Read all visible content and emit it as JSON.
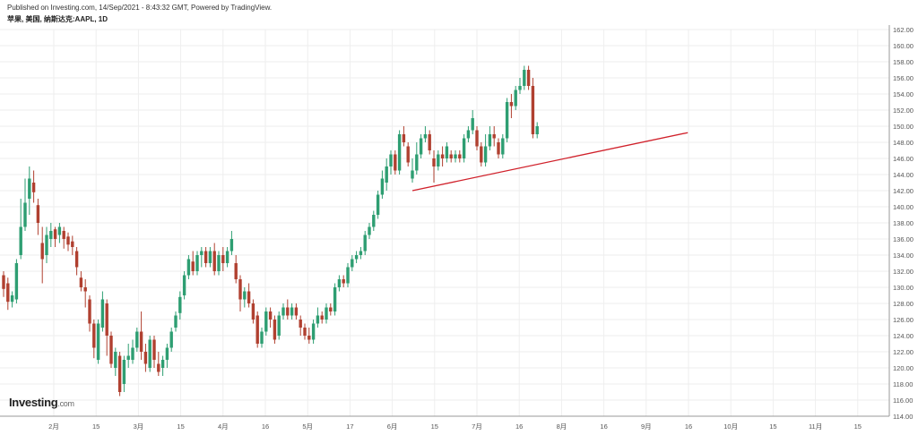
{
  "header": {
    "published": "Published on Investing.com, 14/Sep/2021 - 8:43:32 GMT, Powered by TradingView.",
    "symbol": "苹果, 美国, 纳斯达克:AAPL, 1D"
  },
  "logo": {
    "brand": "Investing",
    "domain": ".com"
  },
  "colors": {
    "up": "#2e9e72",
    "down": "#b04030",
    "trendline": "#d0202a",
    "grid": "#eeeeee"
  },
  "chart_data": {
    "type": "candlestick",
    "ylim": [
      114,
      162
    ],
    "y_ticks": [
      "162.00",
      "160.00",
      "158.00",
      "156.00",
      "154.00",
      "152.00",
      "150.00",
      "148.00",
      "146.00",
      "144.00",
      "142.00",
      "140.00",
      "138.00",
      "136.00",
      "134.00",
      "132.00",
      "130.00",
      "128.00",
      "126.00",
      "124.00",
      "122.00",
      "120.00",
      "118.00",
      "116.00",
      "114.00"
    ],
    "x_ticks": [
      "2月",
      "15",
      "3月",
      "15",
      "4月",
      "16",
      "5月",
      "17",
      "6月",
      "15",
      "7月",
      "16",
      "8月",
      "16",
      "9月",
      "16",
      "10月",
      "15",
      "11月",
      "15"
    ],
    "candles": [
      {
        "o": 131.5,
        "c": 129.8,
        "h": 132.0,
        "l": 128.8
      },
      {
        "o": 130.5,
        "c": 128.2,
        "h": 131.2,
        "l": 127.2
      },
      {
        "o": 128.2,
        "c": 129.0,
        "h": 129.5,
        "l": 127.5
      },
      {
        "o": 128.5,
        "c": 133.0,
        "h": 133.5,
        "l": 128.0
      },
      {
        "o": 134.0,
        "c": 137.5,
        "h": 141.0,
        "l": 133.5
      },
      {
        "o": 137.5,
        "c": 140.5,
        "h": 143.5,
        "l": 137.0
      },
      {
        "o": 141.0,
        "c": 143.5,
        "h": 145.0,
        "l": 139.0
      },
      {
        "o": 143.0,
        "c": 141.8,
        "h": 144.5,
        "l": 140.5
      },
      {
        "o": 140.2,
        "c": 138.0,
        "h": 141.0,
        "l": 136.5
      },
      {
        "o": 135.5,
        "c": 133.5,
        "h": 137.5,
        "l": 130.5
      },
      {
        "o": 134.0,
        "c": 136.5,
        "h": 137.5,
        "l": 133.0
      },
      {
        "o": 136.0,
        "c": 137.0,
        "h": 138.0,
        "l": 135.0
      },
      {
        "o": 137.2,
        "c": 136.0,
        "h": 137.5,
        "l": 135.0
      },
      {
        "o": 136.5,
        "c": 137.5,
        "h": 138.0,
        "l": 135.5
      },
      {
        "o": 137.0,
        "c": 136.0,
        "h": 137.5,
        "l": 134.8
      },
      {
        "o": 136.3,
        "c": 135.3,
        "h": 136.8,
        "l": 134.5
      },
      {
        "o": 135.7,
        "c": 135.0,
        "h": 136.4,
        "l": 134.0
      },
      {
        "o": 134.5,
        "c": 132.5,
        "h": 135.0,
        "l": 131.5
      },
      {
        "o": 131.2,
        "c": 130.0,
        "h": 132.0,
        "l": 129.5
      },
      {
        "o": 130.0,
        "c": 129.5,
        "h": 131.0,
        "l": 127.5
      },
      {
        "o": 128.5,
        "c": 125.5,
        "h": 129.0,
        "l": 124.5
      },
      {
        "o": 125.5,
        "c": 122.5,
        "h": 126.0,
        "l": 121.2
      },
      {
        "o": 121.0,
        "c": 125.5,
        "h": 126.0,
        "l": 120.5
      },
      {
        "o": 125.0,
        "c": 128.5,
        "h": 129.5,
        "l": 124.5
      },
      {
        "o": 128.0,
        "c": 124.0,
        "h": 128.5,
        "l": 121.5
      },
      {
        "o": 124.0,
        "c": 120.5,
        "h": 124.5,
        "l": 120.0
      },
      {
        "o": 120.0,
        "c": 122.0,
        "h": 122.5,
        "l": 119.0
      },
      {
        "o": 121.5,
        "c": 117.0,
        "h": 122.0,
        "l": 116.5
      },
      {
        "o": 118.0,
        "c": 121.0,
        "h": 121.5,
        "l": 117.0
      },
      {
        "o": 121.0,
        "c": 121.5,
        "h": 123.0,
        "l": 120.0
      },
      {
        "o": 121.0,
        "c": 122.5,
        "h": 123.5,
        "l": 120.5
      },
      {
        "o": 122.5,
        "c": 124.5,
        "h": 125.0,
        "l": 122.0
      },
      {
        "o": 124.5,
        "c": 122.0,
        "h": 127.0,
        "l": 121.0
      },
      {
        "o": 122.0,
        "c": 120.5,
        "h": 123.0,
        "l": 119.5
      },
      {
        "o": 120.0,
        "c": 123.5,
        "h": 124.0,
        "l": 119.5
      },
      {
        "o": 123.5,
        "c": 121.0,
        "h": 124.0,
        "l": 120.0
      },
      {
        "o": 120.5,
        "c": 119.5,
        "h": 122.0,
        "l": 119.0
      },
      {
        "o": 120.0,
        "c": 121.0,
        "h": 121.5,
        "l": 119.0
      },
      {
        "o": 121.0,
        "c": 122.5,
        "h": 123.0,
        "l": 120.0
      },
      {
        "o": 122.5,
        "c": 124.5,
        "h": 125.0,
        "l": 122.0
      },
      {
        "o": 125.0,
        "c": 126.5,
        "h": 127.0,
        "l": 124.5
      },
      {
        "o": 126.8,
        "c": 128.8,
        "h": 129.5,
        "l": 126.0
      },
      {
        "o": 129.0,
        "c": 131.5,
        "h": 132.0,
        "l": 128.5
      },
      {
        "o": 131.5,
        "c": 133.5,
        "h": 134.0,
        "l": 131.0
      },
      {
        "o": 133.2,
        "c": 132.0,
        "h": 134.5,
        "l": 131.5
      },
      {
        "o": 132.0,
        "c": 134.0,
        "h": 134.5,
        "l": 131.5
      },
      {
        "o": 134.0,
        "c": 134.5,
        "h": 135.0,
        "l": 132.5
      },
      {
        "o": 134.5,
        "c": 133.0,
        "h": 135.0,
        "l": 132.5
      },
      {
        "o": 133.0,
        "c": 134.5,
        "h": 135.0,
        "l": 132.5
      },
      {
        "o": 134.5,
        "c": 132.0,
        "h": 135.5,
        "l": 131.5
      },
      {
        "o": 132.0,
        "c": 134.0,
        "h": 134.5,
        "l": 131.5
      },
      {
        "o": 134.0,
        "c": 133.0,
        "h": 135.0,
        "l": 132.0
      },
      {
        "o": 133.0,
        "c": 134.5,
        "h": 135.0,
        "l": 132.5
      },
      {
        "o": 134.5,
        "c": 136.0,
        "h": 137.0,
        "l": 134.0
      },
      {
        "o": 133.0,
        "c": 131.0,
        "h": 134.0,
        "l": 130.5
      },
      {
        "o": 131.0,
        "c": 128.5,
        "h": 131.5,
        "l": 127.0
      },
      {
        "o": 128.5,
        "c": 129.5,
        "h": 130.0,
        "l": 127.5
      },
      {
        "o": 129.5,
        "c": 128.0,
        "h": 130.5,
        "l": 127.5
      },
      {
        "o": 128.0,
        "c": 126.0,
        "h": 128.5,
        "l": 125.5
      },
      {
        "o": 126.5,
        "c": 123.0,
        "h": 127.0,
        "l": 122.5
      },
      {
        "o": 123.0,
        "c": 124.5,
        "h": 125.0,
        "l": 122.5
      },
      {
        "o": 124.5,
        "c": 127.0,
        "h": 127.5,
        "l": 124.0
      },
      {
        "o": 127.0,
        "c": 126.0,
        "h": 127.5,
        "l": 125.0
      },
      {
        "o": 126.0,
        "c": 123.5,
        "h": 126.5,
        "l": 123.0
      },
      {
        "o": 124.0,
        "c": 126.5,
        "h": 127.0,
        "l": 123.5
      },
      {
        "o": 126.5,
        "c": 127.5,
        "h": 128.0,
        "l": 126.0
      },
      {
        "o": 127.5,
        "c": 126.5,
        "h": 128.5,
        "l": 126.0
      },
      {
        "o": 126.5,
        "c": 127.5,
        "h": 128.0,
        "l": 126.0
      },
      {
        "o": 127.5,
        "c": 126.5,
        "h": 128.0,
        "l": 126.0
      },
      {
        "o": 126.0,
        "c": 125.0,
        "h": 126.5,
        "l": 124.0
      },
      {
        "o": 125.0,
        "c": 124.0,
        "h": 125.5,
        "l": 123.5
      },
      {
        "o": 124.0,
        "c": 123.5,
        "h": 125.0,
        "l": 123.0
      },
      {
        "o": 123.5,
        "c": 125.5,
        "h": 126.0,
        "l": 123.0
      },
      {
        "o": 125.5,
        "c": 126.5,
        "h": 127.5,
        "l": 125.0
      },
      {
        "o": 126.5,
        "c": 126.0,
        "h": 127.0,
        "l": 125.5
      },
      {
        "o": 126.0,
        "c": 127.5,
        "h": 128.0,
        "l": 125.5
      },
      {
        "o": 127.5,
        "c": 127.0,
        "h": 128.0,
        "l": 126.5
      },
      {
        "o": 127.0,
        "c": 130.0,
        "h": 130.5,
        "l": 126.5
      },
      {
        "o": 130.0,
        "c": 131.0,
        "h": 131.5,
        "l": 129.5
      },
      {
        "o": 131.0,
        "c": 130.5,
        "h": 131.5,
        "l": 130.0
      },
      {
        "o": 130.5,
        "c": 132.5,
        "h": 133.0,
        "l": 130.0
      },
      {
        "o": 132.5,
        "c": 133.5,
        "h": 134.0,
        "l": 132.0
      },
      {
        "o": 133.5,
        "c": 134.0,
        "h": 134.5,
        "l": 133.0
      },
      {
        "o": 134.0,
        "c": 134.5,
        "h": 135.0,
        "l": 133.5
      },
      {
        "o": 134.5,
        "c": 136.5,
        "h": 137.0,
        "l": 134.0
      },
      {
        "o": 136.5,
        "c": 137.5,
        "h": 138.0,
        "l": 136.0
      },
      {
        "o": 137.5,
        "c": 139.0,
        "h": 139.5,
        "l": 137.0
      },
      {
        "o": 139.0,
        "c": 141.5,
        "h": 142.0,
        "l": 138.5
      },
      {
        "o": 141.5,
        "c": 143.5,
        "h": 144.5,
        "l": 141.0
      },
      {
        "o": 143.0,
        "c": 145.0,
        "h": 146.0,
        "l": 142.0
      },
      {
        "o": 145.0,
        "c": 146.5,
        "h": 147.0,
        "l": 144.0
      },
      {
        "o": 146.5,
        "c": 144.5,
        "h": 147.0,
        "l": 144.0
      },
      {
        "o": 144.5,
        "c": 149.0,
        "h": 149.5,
        "l": 144.0
      },
      {
        "o": 149.0,
        "c": 148.0,
        "h": 150.0,
        "l": 147.5
      },
      {
        "o": 147.5,
        "c": 145.5,
        "h": 148.0,
        "l": 145.0
      },
      {
        "o": 143.5,
        "c": 144.5,
        "h": 146.0,
        "l": 143.0
      },
      {
        "o": 144.5,
        "c": 146.5,
        "h": 148.0,
        "l": 144.0
      },
      {
        "o": 146.5,
        "c": 148.5,
        "h": 149.0,
        "l": 146.0
      },
      {
        "o": 148.5,
        "c": 149.0,
        "h": 150.0,
        "l": 148.0
      },
      {
        "o": 149.0,
        "c": 147.0,
        "h": 149.5,
        "l": 146.5
      },
      {
        "o": 146.0,
        "c": 145.0,
        "h": 147.0,
        "l": 143.0
      },
      {
        "o": 145.0,
        "c": 146.5,
        "h": 147.0,
        "l": 144.5
      },
      {
        "o": 146.5,
        "c": 146.0,
        "h": 147.5,
        "l": 145.0
      },
      {
        "o": 146.0,
        "c": 147.5,
        "h": 148.0,
        "l": 145.5
      },
      {
        "o": 146.5,
        "c": 146.0,
        "h": 147.0,
        "l": 145.5
      },
      {
        "o": 146.0,
        "c": 146.5,
        "h": 147.0,
        "l": 145.5
      },
      {
        "o": 146.5,
        "c": 146.0,
        "h": 147.0,
        "l": 145.5
      },
      {
        "o": 146.0,
        "c": 148.5,
        "h": 149.0,
        "l": 145.5
      },
      {
        "o": 148.5,
        "c": 149.5,
        "h": 150.0,
        "l": 148.0
      },
      {
        "o": 149.5,
        "c": 151.0,
        "h": 152.0,
        "l": 149.0
      },
      {
        "o": 149.5,
        "c": 147.5,
        "h": 150.0,
        "l": 147.0
      },
      {
        "o": 147.5,
        "c": 145.5,
        "h": 148.0,
        "l": 145.0
      },
      {
        "o": 145.5,
        "c": 147.5,
        "h": 149.0,
        "l": 145.0
      },
      {
        "o": 147.5,
        "c": 149.0,
        "h": 150.0,
        "l": 147.0
      },
      {
        "o": 149.0,
        "c": 148.5,
        "h": 150.0,
        "l": 147.5
      },
      {
        "o": 148.0,
        "c": 146.5,
        "h": 148.5,
        "l": 146.0
      },
      {
        "o": 146.5,
        "c": 148.5,
        "h": 149.0,
        "l": 146.0
      },
      {
        "o": 148.5,
        "c": 153.0,
        "h": 153.5,
        "l": 148.0
      },
      {
        "o": 153.0,
        "c": 152.5,
        "h": 154.0,
        "l": 151.0
      },
      {
        "o": 152.5,
        "c": 154.5,
        "h": 155.0,
        "l": 152.0
      },
      {
        "o": 154.5,
        "c": 155.0,
        "h": 156.0,
        "l": 154.0
      },
      {
        "o": 155.0,
        "c": 157.0,
        "h": 157.5,
        "l": 154.5
      },
      {
        "o": 157.0,
        "c": 155.0,
        "h": 157.5,
        "l": 154.5
      },
      {
        "o": 155.0,
        "c": 149.0,
        "h": 156.0,
        "l": 148.5
      },
      {
        "o": 149.0,
        "c": 150.0,
        "h": 150.5,
        "l": 148.5
      }
    ],
    "trendline": {
      "from_index": 95,
      "from_price": 142.0,
      "to_index": 159,
      "to_price": 149.2
    }
  }
}
